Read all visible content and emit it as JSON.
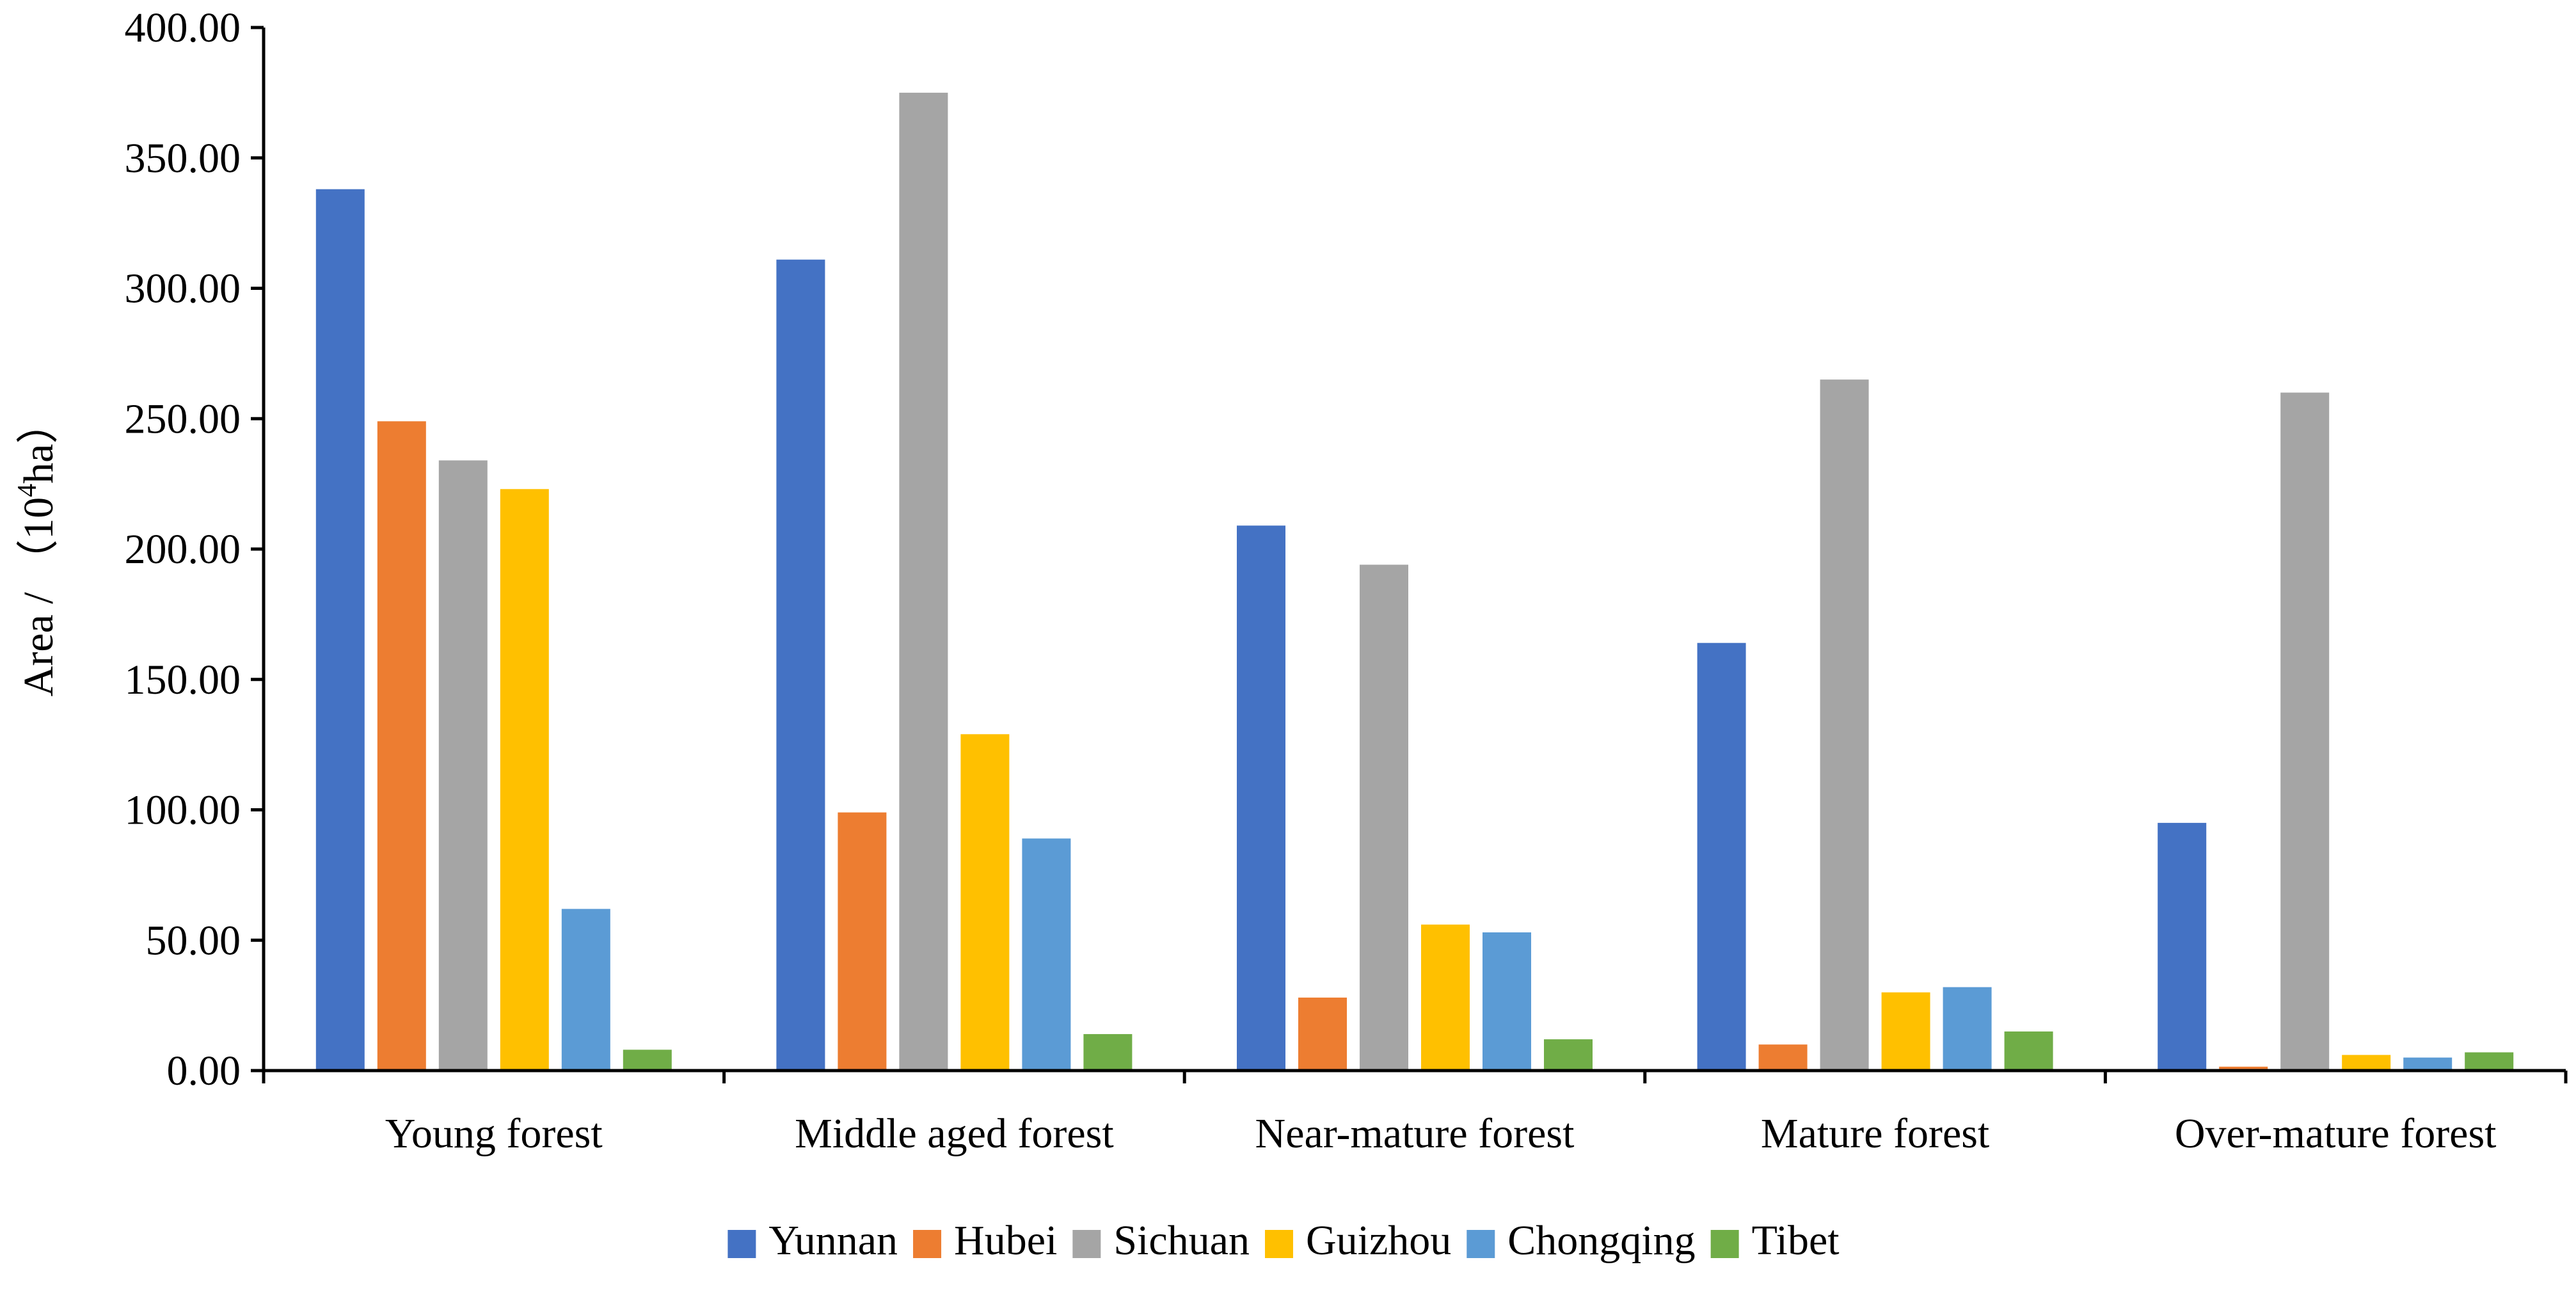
{
  "chart_data": {
    "type": "bar",
    "title": "",
    "xlabel": "",
    "ylabel": "Area / （10",
    "ylabel_sup": "4",
    "ylabel_suffix": "ha）",
    "ylim": [
      0,
      400
    ],
    "ytick_step": 50,
    "ytick_labels": [
      "0.00",
      "50.00",
      "100.00",
      "150.00",
      "200.00",
      "250.00",
      "300.00",
      "350.00",
      "400.00"
    ],
    "grid": false,
    "legend_position": "bottom",
    "categories": [
      "Young forest",
      "Middle aged forest",
      "Near-mature forest",
      "Mature forest",
      "Over-mature forest"
    ],
    "series": [
      {
        "name": "Yunnan",
        "color": "#4472C4",
        "values": [
          338,
          311,
          209,
          164,
          95
        ]
      },
      {
        "name": "Hubei",
        "color": "#ED7D31",
        "values": [
          249,
          99,
          28,
          10,
          1.5
        ]
      },
      {
        "name": "Sichuan",
        "color": "#A5A5A5",
        "values": [
          234,
          375,
          194,
          265,
          260
        ]
      },
      {
        "name": "Guizhou",
        "color": "#FFC000",
        "values": [
          223,
          129,
          56,
          30,
          6
        ]
      },
      {
        "name": "Chongqing",
        "color": "#5B9BD5",
        "values": [
          62,
          89,
          53,
          32,
          5
        ]
      },
      {
        "name": "Tibet",
        "color": "#70AD47",
        "values": [
          8,
          14,
          12,
          15,
          7
        ]
      }
    ]
  }
}
